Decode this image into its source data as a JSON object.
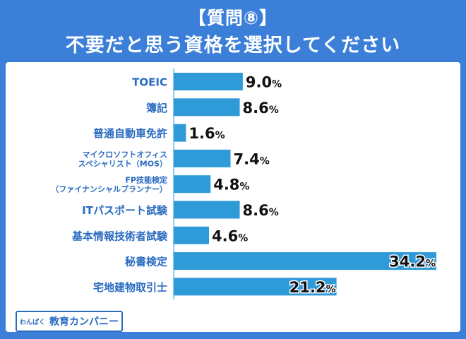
{
  "header": {
    "line1": "【質問⑧】",
    "line2": "不要だと思う資格を選択してください"
  },
  "chart_data": {
    "type": "bar",
    "orientation": "horizontal",
    "title": "不要だと思う資格を選択してください",
    "unit": "%",
    "categories": [
      [
        "TOEIC"
      ],
      [
        "簿記"
      ],
      [
        "普通自動車免許"
      ],
      [
        "マイクロソフトオフィス",
        "スペシャリスト（MOS）"
      ],
      [
        "FP技能検定",
        "（ファイナンシャルプランナー）"
      ],
      [
        "ITパスポート試験"
      ],
      [
        "基本情報技術者試験"
      ],
      [
        "秘書検定"
      ],
      [
        "宅地建物取引士"
      ]
    ],
    "values": [
      9.0,
      8.6,
      1.6,
      7.4,
      4.8,
      8.6,
      4.6,
      34.2,
      21.2
    ],
    "value_labels": [
      "9.0",
      "8.6",
      "1.6",
      "7.4",
      "4.8",
      "8.6",
      "4.6",
      "34.2",
      "21.2"
    ],
    "xlim": [
      0,
      34.2
    ],
    "bar_color": "#2e9ad8"
  },
  "footer": {
    "logo_small": "わんぱく",
    "logo_big": "教育カンパニー"
  }
}
